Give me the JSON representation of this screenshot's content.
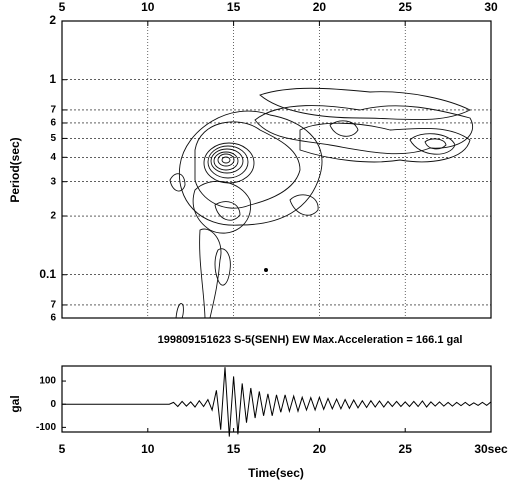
{
  "chart_data": [
    {
      "type": "contour",
      "ylabel": "Period(sec)",
      "xlim": [
        5,
        30
      ],
      "xticks": [
        5,
        10,
        15,
        20,
        25,
        30
      ],
      "ylim": [
        0.06,
        2
      ],
      "log_y": true,
      "grid": true,
      "yticks": [
        2,
        1,
        {
          "value": 0.7,
          "label": "7"
        },
        {
          "value": 0.6,
          "label": "6"
        },
        {
          "value": 0.5,
          "label": "5"
        },
        {
          "value": 0.4,
          "label": "4"
        },
        {
          "value": 0.3,
          "label": "3"
        },
        {
          "value": 0.2,
          "label": "2"
        },
        0.1,
        {
          "value": 0.07,
          "label": "7"
        },
        {
          "value": 0.06,
          "label": "6"
        }
      ]
    },
    {
      "type": "line",
      "title": "199809151623 S-5(SENH) EW  Max.Acceleration = 166.1 gal",
      "xlabel": "Time(sec)",
      "ylabel": "gal",
      "color": "#000000",
      "xlim": [
        5,
        30
      ],
      "xticks": [
        5,
        10,
        15,
        20,
        25,
        {
          "value": 30,
          "label": "30sec"
        }
      ],
      "ylim": [
        -120,
        165
      ],
      "yticks": [
        100,
        0,
        -100
      ],
      "x": [
        5,
        5.25,
        5.5,
        5.75,
        6,
        6.25,
        6.5,
        6.75,
        7,
        7.25,
        7.5,
        7.75,
        8,
        8.25,
        8.5,
        8.75,
        9,
        9.25,
        9.5,
        9.75,
        10,
        10.25,
        10.5,
        10.75,
        11,
        11.25,
        11.5,
        11.75,
        12,
        12.25,
        12.5,
        12.75,
        13,
        13.25,
        13.5,
        13.75,
        14,
        14.25,
        14.5,
        14.75,
        15,
        15.25,
        15.5,
        15.75,
        16,
        16.25,
        16.5,
        16.75,
        17,
        17.25,
        17.5,
        17.75,
        18,
        18.25,
        18.5,
        18.75,
        19,
        19.25,
        19.5,
        19.75,
        20,
        20.25,
        20.5,
        20.75,
        21,
        21.25,
        21.5,
        21.75,
        22,
        22.25,
        22.5,
        22.75,
        23,
        23.25,
        23.5,
        23.75,
        24,
        24.25,
        24.5,
        24.75,
        25,
        25.25,
        25.5,
        25.75,
        26,
        26.25,
        26.5,
        26.75,
        27,
        27.25,
        27.5,
        27.75,
        28,
        28.25,
        28.5,
        28.75,
        29,
        29.25,
        29.5,
        29.75,
        30
      ],
      "values": [
        0,
        0,
        0,
        0,
        0,
        0,
        0,
        0,
        0,
        0,
        0,
        0,
        0,
        0,
        0,
        0,
        0,
        0,
        0,
        0,
        0,
        0,
        0,
        0,
        0,
        0,
        8,
        -10,
        12,
        -8,
        10,
        -12,
        15,
        -10,
        20,
        -25,
        60,
        -110,
        160,
        -140,
        120,
        -130,
        90,
        -80,
        70,
        -60,
        55,
        -50,
        45,
        -50,
        40,
        -35,
        40,
        -30,
        35,
        -30,
        30,
        -25,
        28,
        -25,
        30,
        -22,
        25,
        -20,
        22,
        -20,
        20,
        -18,
        18,
        -16,
        15,
        -14,
        15,
        -12,
        14,
        -12,
        12,
        -10,
        12,
        -10,
        10,
        -10,
        12,
        -10,
        14,
        -12,
        10,
        -8,
        10,
        -8,
        8,
        -8,
        8,
        -6,
        8,
        -6,
        6,
        -5,
        8,
        -5,
        10
      ]
    }
  ]
}
